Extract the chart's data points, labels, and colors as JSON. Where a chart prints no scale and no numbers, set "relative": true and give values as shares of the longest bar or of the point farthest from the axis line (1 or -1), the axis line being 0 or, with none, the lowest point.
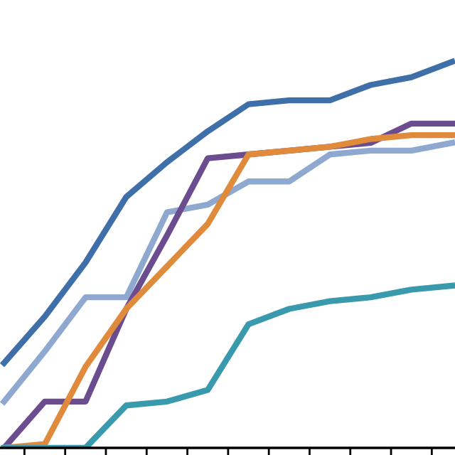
{
  "chart_data": {
    "type": "line",
    "relative": true,
    "categories": [
      null,
      null,
      null,
      null,
      null,
      null,
      null,
      null,
      null,
      null,
      null,
      null
    ],
    "series": [
      {
        "color": "#3f6fa8",
        "values": [
          0.22,
          0.34,
          0.48,
          0.65,
          0.74,
          0.82,
          0.89,
          0.9,
          0.9,
          0.94,
          0.96,
          1
        ]
      },
      {
        "color": "#8fa8d0",
        "values": [
          0.12,
          0.25,
          0.39,
          0.39,
          0.61,
          0.63,
          0.69,
          0.69,
          0.76,
          0.77,
          0.77,
          0.79
        ]
      },
      {
        "color": "#6b4c8f",
        "values": [
          0,
          0.12,
          0.12,
          0.36,
          0.55,
          0.75,
          0.76,
          0.77,
          0.78,
          0.79,
          0.84,
          0.84
        ]
      },
      {
        "color": "#e08a3c",
        "values": [
          0,
          0.01,
          0.21,
          0.36,
          0.47,
          0.58,
          0.76,
          0.77,
          0.78,
          0.8,
          0.81,
          0.81
        ]
      },
      {
        "color": "#3a9aad",
        "values": [
          0,
          0,
          0,
          0.11,
          0.12,
          0.15,
          0.32,
          0.36,
          0.38,
          0.39,
          0.41,
          0.42
        ]
      }
    ],
    "grid": false,
    "marker": "none",
    "line_style": "solid"
  }
}
